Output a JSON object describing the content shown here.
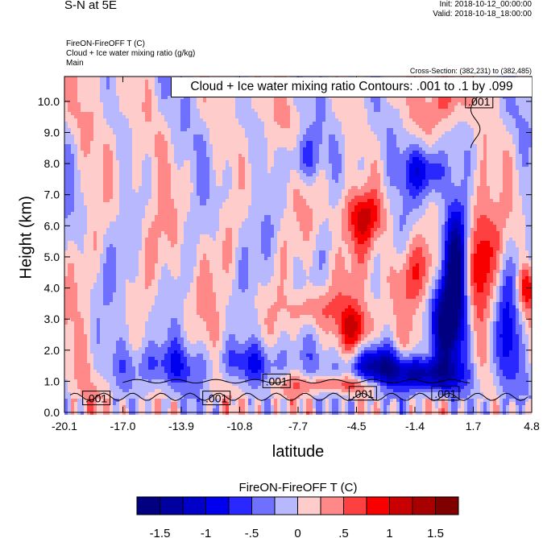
{
  "header": {
    "title": "S-N at 5E",
    "init": "Init: 2018-10-12_00:00:00",
    "valid": "Valid: 2018-10-18_18:00:00",
    "field1": "FireON-FireOFF T   (C)",
    "field2": "Cloud + Ice water mixing ratio   (g/kg)",
    "domain": "Main",
    "cross_section": "Cross-Section: (382,231) to (382,485)"
  },
  "chart_data": {
    "type": "heatmap",
    "title": "Cloud + Ice water mixing ratio Contours: .001 to .1 by .099",
    "xlabel": "latitude",
    "ylabel": "Height (km)",
    "xlim": [
      -20.1,
      4.8
    ],
    "ylim": [
      0,
      10.8
    ],
    "x_ticks": [
      "-20.1",
      "-17.0",
      "-13.9",
      "-10.8",
      "-7.7",
      "-4.5",
      "-1.4",
      "1.7",
      "4.8"
    ],
    "y_ticks": [
      "0.0",
      "1.0",
      "2.0",
      "3.0",
      "4.0",
      "5.0",
      "6.0",
      "7.0",
      "8.0",
      "9.0",
      "10.0"
    ],
    "contour_labels": [
      {
        "text": ".001",
        "lat": -18.4,
        "h": 0.45
      },
      {
        "text": ".001",
        "lat": -12.0,
        "h": 0.45
      },
      {
        "text": ".001",
        "lat": -8.8,
        "h": 1.0
      },
      {
        "text": ".001",
        "lat": -4.2,
        "h": 0.6
      },
      {
        "text": ".001",
        "lat": 0.2,
        "h": 0.6
      },
      {
        "text": ".001",
        "lat": 2.0,
        "h": 10.0
      }
    ],
    "features": [
      {
        "lat": 0.7,
        "h": 4.6,
        "slat": 0.5,
        "sh": 1.6,
        "v": -1.7
      },
      {
        "lat": 0.2,
        "h": 2.8,
        "slat": 0.6,
        "sh": 0.9,
        "v": -1.2
      },
      {
        "lat": -3.6,
        "h": 1.5,
        "slat": 1.0,
        "sh": 0.45,
        "v": -1.3
      },
      {
        "lat": -1.0,
        "h": 1.2,
        "slat": 1.3,
        "sh": 0.4,
        "v": -1.6
      },
      {
        "lat": -10.0,
        "h": 1.6,
        "slat": 1.5,
        "sh": 0.5,
        "v": -0.7
      },
      {
        "lat": -15.0,
        "h": 1.5,
        "slat": 1.6,
        "sh": 0.5,
        "v": -0.6
      },
      {
        "lat": -4.2,
        "h": 6.3,
        "slat": 0.8,
        "sh": 0.6,
        "v": 0.9
      },
      {
        "lat": -4.6,
        "h": 2.7,
        "slat": 0.6,
        "sh": 0.6,
        "v": 0.95
      },
      {
        "lat": -7.0,
        "h": 3.3,
        "slat": 1.0,
        "sh": 0.5,
        "v": 0.6
      },
      {
        "lat": -5.5,
        "h": 0.9,
        "slat": 2.0,
        "sh": 0.2,
        "v": 0.7
      },
      {
        "lat": -0.8,
        "h": 7.8,
        "slat": 0.8,
        "sh": 0.6,
        "v": -1.0
      },
      {
        "lat": -7.3,
        "h": 8.2,
        "slat": 0.6,
        "sh": 0.6,
        "v": -0.8
      },
      {
        "lat": 2.0,
        "h": 5.0,
        "slat": 0.5,
        "sh": 1.5,
        "v": 0.8
      },
      {
        "lat": 3.5,
        "h": 2.5,
        "slat": 0.4,
        "sh": 1.5,
        "v": -0.8
      },
      {
        "lat": 4.5,
        "h": 4.0,
        "slat": 0.3,
        "sh": 0.5,
        "v": 0.9
      },
      {
        "lat": -1.0,
        "h": 4.5,
        "slat": 1.5,
        "sh": 0.8,
        "v": 0.5
      },
      {
        "lat": 0.3,
        "h": 10.3,
        "slat": 0.6,
        "sh": 0.6,
        "v": 0.8
      }
    ],
    "colorbar": {
      "title": "FireON-FireOFF T  (C)",
      "levels": [
        -1.75,
        -1.5,
        -1.25,
        -1,
        -0.75,
        -0.5,
        -0.25,
        0,
        0.25,
        0.5,
        0.75,
        1,
        1.25,
        1.5,
        1.75
      ],
      "colors": [
        "#000080",
        "#0000a0",
        "#0000c8",
        "#0000ee",
        "#2828ff",
        "#7070ff",
        "#b8b8ff",
        "#ffcccc",
        "#ff8888",
        "#ff4040",
        "#f80000",
        "#c80000",
        "#a80000",
        "#800000"
      ],
      "labels": [
        "-1.5",
        "-1",
        "-.5",
        "0",
        ".5",
        "1",
        "1.5"
      ],
      "label_values": [
        -1.5,
        -1,
        -0.5,
        0,
        0.5,
        1,
        1.5
      ]
    }
  }
}
